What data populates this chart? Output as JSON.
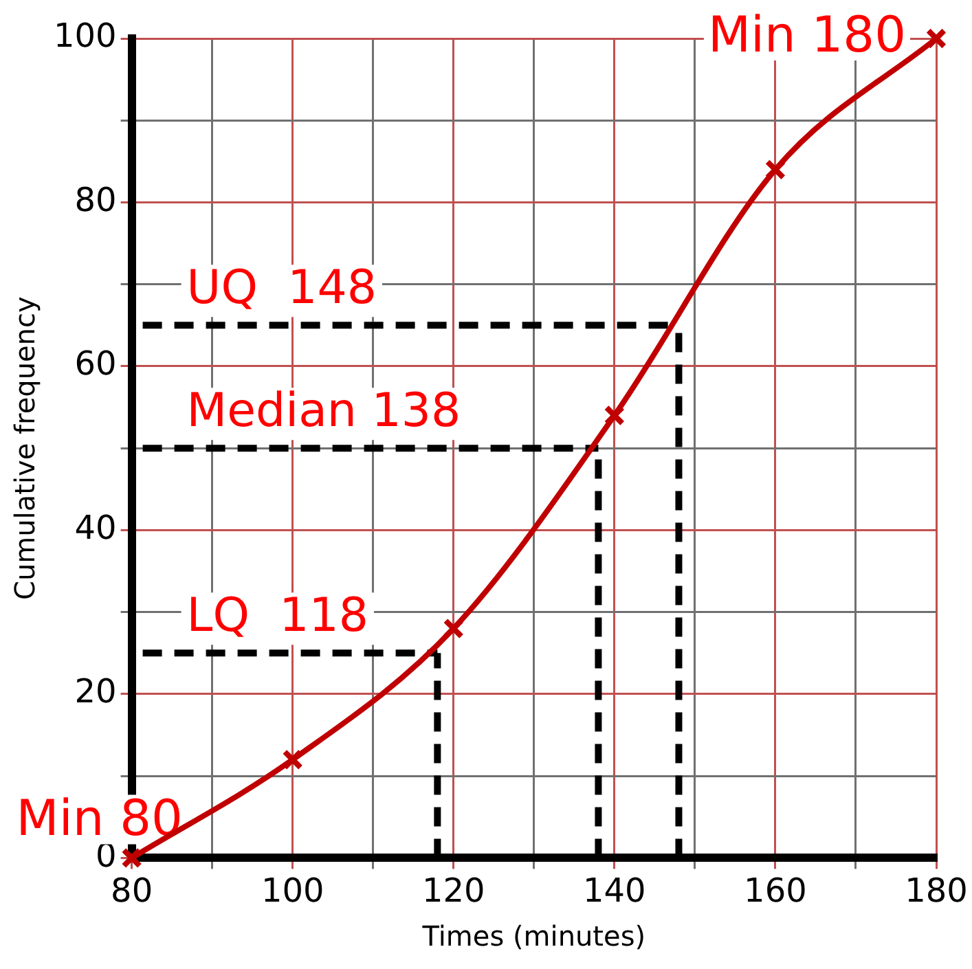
{
  "chart_data": {
    "type": "line",
    "xlabel": "Times (minutes)",
    "ylabel": "Cumulative frequency",
    "x": [
      80,
      100,
      120,
      140,
      160,
      180
    ],
    "series": [
      {
        "color": "#c00000",
        "values": [
          0,
          12,
          28,
          54,
          84,
          100
        ]
      }
    ],
    "marker": "cross",
    "line_style": "solid",
    "grid": true,
    "legend": false,
    "xlim": [
      80,
      180
    ],
    "ylim": [
      0,
      100
    ],
    "xticks": [
      80,
      {
        "value": 90,
        "label": null
      },
      100,
      {
        "value": 110,
        "label": null
      },
      120,
      {
        "value": 130,
        "label": null
      },
      140,
      {
        "value": 150,
        "label": null
      },
      160,
      {
        "value": 170,
        "label": null
      },
      180
    ],
    "yticks": [
      0,
      {
        "value": 10,
        "label": null
      },
      20,
      {
        "value": 30,
        "label": null
      },
      40,
      {
        "value": 50,
        "label": null
      },
      60,
      {
        "value": 70,
        "label": null
      },
      80,
      {
        "value": 90,
        "label": null
      },
      100
    ],
    "ref_lines": [
      {
        "axis": "y",
        "value": 25,
        "label": "LQ  118",
        "line_style": "dashed",
        "color": "#000000"
      },
      {
        "axis": "y",
        "value": 50,
        "label": "Median 138",
        "line_style": "dashed",
        "color": "#000000"
      },
      {
        "axis": "y",
        "value": 65,
        "label": "UQ  148",
        "line_style": "dashed",
        "color": "#000000"
      },
      {
        "axis": "x",
        "value": 118,
        "line_style": "dashed",
        "color": "#000000"
      },
      {
        "axis": "x",
        "value": 138,
        "line_style": "dashed",
        "color": "#000000"
      },
      {
        "axis": "x",
        "value": 148,
        "line_style": "dashed",
        "color": "#000000"
      }
    ],
    "annotations": [
      {
        "text": "Min 80",
        "x": 80,
        "y": 0
      },
      {
        "text": "Min 180",
        "x": 180,
        "y": 100
      }
    ]
  }
}
